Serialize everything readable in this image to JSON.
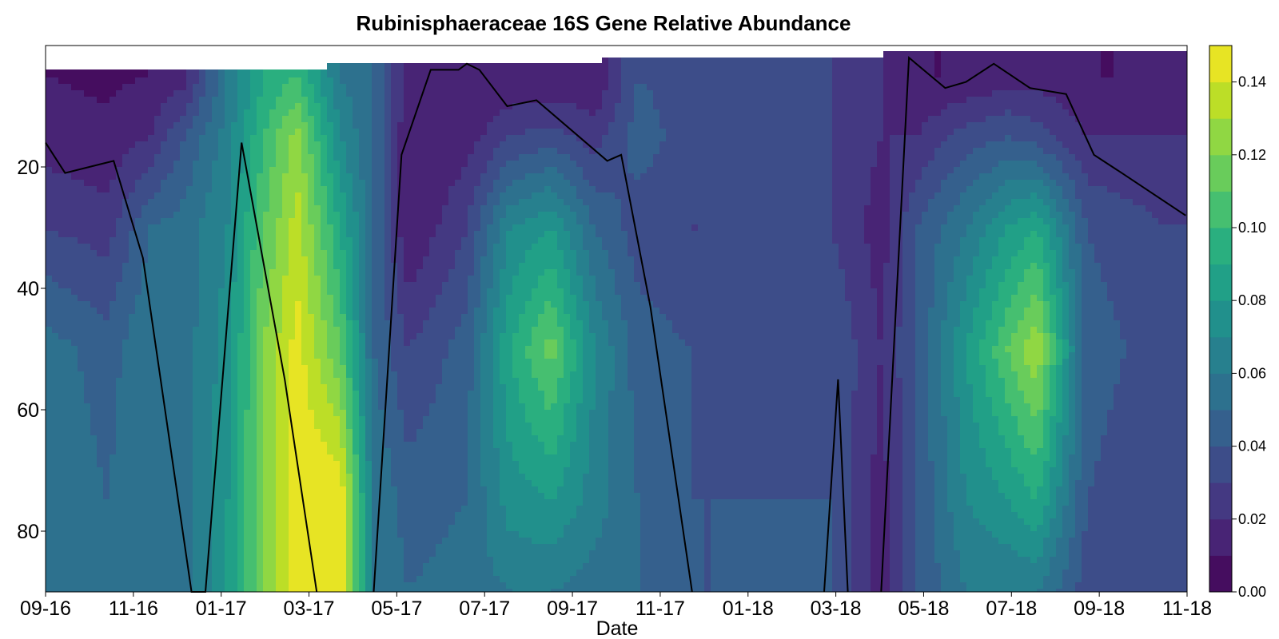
{
  "chart_data": {
    "type": "heatmap",
    "title": "Rubinisphaeraceae 16S Gene Relative Abundance",
    "xlabel": "Date",
    "ylabel": "",
    "y_reversed": true,
    "ylim": [
      90,
      0
    ],
    "x_tick_labels": [
      "09-16",
      "11-16",
      "01-17",
      "03-17",
      "05-17",
      "07-17",
      "09-17",
      "11-17",
      "01-18",
      "03-18",
      "05-18",
      "07-18",
      "09-18",
      "11-18"
    ],
    "y_tick_labels": [
      "20",
      "40",
      "60",
      "80"
    ],
    "y_ticks": [
      20,
      40,
      60,
      80
    ],
    "colorbar": {
      "range": [
        0,
        0.15
      ],
      "levels": [
        0.0,
        0.01,
        0.02,
        0.03,
        0.04,
        0.05,
        0.06,
        0.07,
        0.08,
        0.09,
        0.1,
        0.11,
        0.12,
        0.13,
        0.14,
        0.15
      ],
      "tick_labels": [
        "0.00",
        "0.02",
        "0.04",
        "0.06",
        "0.08",
        "0.10",
        "0.12",
        "0.14"
      ],
      "tick_values": [
        0.0,
        0.02,
        0.04,
        0.06,
        0.08,
        0.1,
        0.12,
        0.14
      ],
      "colormap": "viridis"
    },
    "depths": [
      5,
      15,
      30,
      50,
      75,
      90
    ],
    "columns": [
      {
        "date": "2016-09-01",
        "values": [
          0.01,
          0.015,
          0.03,
          0.055,
          0.06,
          0.06
        ]
      },
      {
        "date": "2016-10-15",
        "values": [
          0.008,
          0.012,
          0.025,
          0.045,
          0.05,
          0.05
        ]
      },
      {
        "date": "2016-11-15",
        "values": [
          0.01,
          0.02,
          0.05,
          0.06,
          0.06,
          0.06
        ]
      },
      {
        "date": "2016-12-10",
        "values": [
          0.015,
          0.04,
          0.055,
          0.055,
          0.055,
          0.055
        ]
      },
      {
        "date": "2017-01-10",
        "values": [
          0.06,
          0.065,
          0.07,
          0.075,
          0.08,
          0.08
        ]
      },
      {
        "date": "2017-02-05",
        "values": [
          0.09,
          0.1,
          0.11,
          0.12,
          0.12,
          0.12
        ]
      },
      {
        "date": "2017-03-01",
        "values": [
          0.1,
          0.125,
          0.135,
          0.145,
          0.15,
          0.15
        ]
      },
      {
        "date": "2017-04-01",
        "values": [
          0.06,
          0.07,
          0.09,
          0.11,
          0.15,
          0.15
        ]
      },
      {
        "date": "2017-04-25",
        "values": [
          0.05,
          0.05,
          0.05,
          0.05,
          0.06,
          0.06
        ]
      },
      {
        "date": "2017-05-20",
        "values": [
          0.015,
          0.01,
          0.01,
          0.03,
          0.045,
          0.05
        ]
      },
      {
        "date": "2017-07-01",
        "values": [
          0.01,
          0.015,
          0.03,
          0.045,
          0.05,
          0.055
        ]
      },
      {
        "date": "2017-08-01",
        "values": [
          0.01,
          0.03,
          0.07,
          0.09,
          0.075,
          0.06
        ]
      },
      {
        "date": "2017-08-31",
        "values": [
          0.01,
          0.035,
          0.08,
          0.115,
          0.08,
          0.06
        ]
      },
      {
        "date": "2017-10-01",
        "values": [
          0.01,
          0.025,
          0.05,
          0.07,
          0.065,
          0.055
        ]
      },
      {
        "date": "2017-11-01",
        "values": [
          0.04,
          0.045,
          0.035,
          0.045,
          0.05,
          0.05
        ]
      },
      {
        "date": "2017-12-10",
        "values": [
          0.035,
          0.035,
          0.03,
          0.04,
          0.04,
          0.04
        ]
      },
      {
        "date": "2018-02-01",
        "values": [
          0.03,
          0.03,
          0.03,
          0.035,
          0.04,
          0.04
        ]
      },
      {
        "date": "2018-03-20",
        "values": [
          0.03,
          0.03,
          0.03,
          0.04,
          0.04,
          0.04
        ]
      },
      {
        "date": "2018-04-25",
        "values": [
          0.02,
          0.02,
          0.015,
          0.02,
          0.015,
          0.015
        ]
      },
      {
        "date": "2018-05-20",
        "values": [
          0.01,
          0.02,
          0.04,
          0.04,
          0.04,
          0.04
        ]
      },
      {
        "date": "2018-06-25",
        "values": [
          0.01,
          0.035,
          0.06,
          0.08,
          0.07,
          0.06
        ]
      },
      {
        "date": "2018-07-25",
        "values": [
          0.015,
          0.04,
          0.08,
          0.11,
          0.08,
          0.06
        ]
      },
      {
        "date": "2018-08-15",
        "values": [
          0.015,
          0.035,
          0.09,
          0.13,
          0.09,
          0.06
        ]
      },
      {
        "date": "2018-09-20",
        "values": [
          0.01,
          0.02,
          0.04,
          0.045,
          0.04,
          0.035
        ]
      },
      {
        "date": "2018-11-15",
        "values": [
          0.01,
          0.02,
          0.03,
          0.035,
          0.03,
          0.03
        ]
      }
    ],
    "line_series": [
      {
        "date": "2016-09-01",
        "depth": 16
      },
      {
        "date": "2016-09-15",
        "depth": 21
      },
      {
        "date": "2016-10-20",
        "depth": 19
      },
      {
        "date": "2016-11-10",
        "depth": 35
      },
      {
        "date": "2016-12-15",
        "depth": 90
      },
      {
        "date": "2016-12-25",
        "depth": 90
      },
      {
        "date": "2017-01-20",
        "depth": 16
      },
      {
        "date": "2017-02-20",
        "depth": 55
      },
      {
        "date": "2017-03-15",
        "depth": 90
      }
    ],
    "line_series_2": [
      {
        "date": "2017-04-25",
        "depth": 90
      },
      {
        "date": "2017-05-15",
        "depth": 18
      },
      {
        "date": "2017-06-05",
        "depth": 4
      },
      {
        "date": "2017-06-25",
        "depth": 4
      },
      {
        "date": "2017-07-01",
        "depth": 3
      },
      {
        "date": "2017-07-10",
        "depth": 4
      },
      {
        "date": "2017-07-30",
        "depth": 10
      },
      {
        "date": "2017-08-20",
        "depth": 9
      },
      {
        "date": "2017-10-10",
        "depth": 19
      },
      {
        "date": "2017-10-20",
        "depth": 18
      },
      {
        "date": "2017-11-10",
        "depth": 43
      },
      {
        "date": "2017-12-10",
        "depth": 90
      }
    ],
    "line_series_3": [
      {
        "date": "2018-03-15",
        "depth": 90
      },
      {
        "date": "2018-03-25",
        "depth": 55
      },
      {
        "date": "2018-04-01",
        "depth": 90
      }
    ],
    "line_series_4": [
      {
        "date": "2018-04-25",
        "depth": 90
      },
      {
        "date": "2018-05-15",
        "depth": 2
      },
      {
        "date": "2018-06-10",
        "depth": 7
      },
      {
        "date": "2018-06-25",
        "depth": 6
      },
      {
        "date": "2018-07-15",
        "depth": 3
      },
      {
        "date": "2018-08-10",
        "depth": 7
      },
      {
        "date": "2018-09-05",
        "depth": 8
      },
      {
        "date": "2018-09-25",
        "depth": 18
      },
      {
        "date": "2018-10-15",
        "depth": 21
      },
      {
        "date": "2018-11-30",
        "depth": 28
      }
    ]
  }
}
